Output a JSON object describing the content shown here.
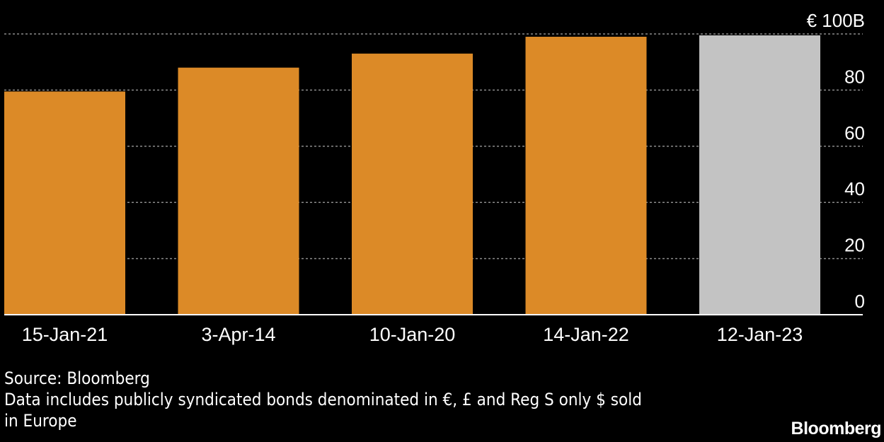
{
  "chart_data": {
    "type": "bar",
    "categories": [
      "15-Jan-21",
      "3-Apr-14",
      "10-Jan-20",
      "14-Jan-22",
      "12-Jan-23"
    ],
    "values": [
      79.5,
      88,
      93,
      99,
      99.5
    ],
    "bar_colors": [
      "#dc8a27",
      "#dc8a27",
      "#dc8a27",
      "#dc8a27",
      "#c3c3c3"
    ],
    "ylim": [
      0,
      100
    ],
    "yticks": [
      0,
      20,
      40,
      60,
      80,
      100
    ],
    "ytick_labels": [
      "0",
      "20",
      "40",
      "60",
      "80",
      "€ 100B"
    ],
    "y_axis_side": "right",
    "grid": true
  },
  "colors": {
    "background": "#000000",
    "highlight": "#dc8a27",
    "latest": "#c3c3c3",
    "text": "#ffffff"
  },
  "footnotes": {
    "source": "Source: Bloomberg",
    "note_line1": "Data includes publicly syndicated bonds denominated in €, £ and Reg S only $ sold",
    "note_line2": "in Europe"
  },
  "logo": "Bloomberg"
}
